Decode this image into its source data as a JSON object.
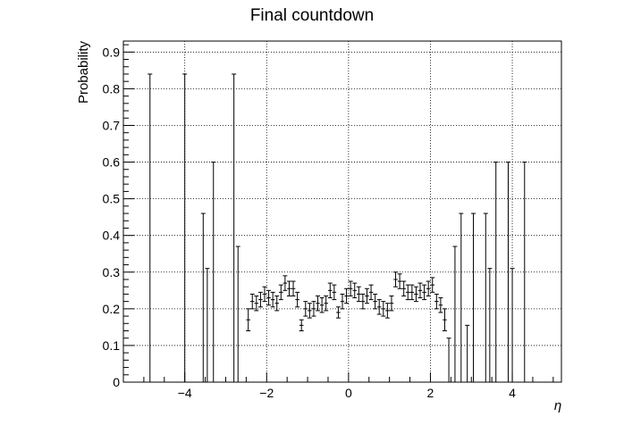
{
  "chart_data": {
    "type": "scatter",
    "title": "Final countdown",
    "xlabel": "η",
    "ylabel": "Probability",
    "xlim": [
      -5.5,
      5.2
    ],
    "ylim": [
      0,
      0.93
    ],
    "x_ticks": [
      -4,
      -2,
      0,
      2,
      4
    ],
    "x_tick_labels": [
      "−4",
      "−2",
      "0",
      "2",
      "4"
    ],
    "y_ticks": [
      0,
      0.1,
      0.2,
      0.3,
      0.4,
      0.5,
      0.6,
      0.7,
      0.8,
      0.9
    ],
    "y_tick_labels": [
      "0",
      "0.1",
      "0.2",
      "0.3",
      "0.4",
      "0.5",
      "0.6",
      "0.7",
      "0.8",
      "0.9"
    ],
    "grid": true,
    "bin_half_width": 0.05,
    "series": [
      {
        "points": [
          {
            "x": -4.85,
            "y": 0.0,
            "yerr": 0.84
          },
          {
            "x": -4.0,
            "y": 0.0,
            "yerr": 0.84
          },
          {
            "x": -3.55,
            "y": 0.0,
            "yerr": 0.46
          },
          {
            "x": -3.45,
            "y": 0.0,
            "yerr": 0.31
          },
          {
            "x": -3.3,
            "y": 0.0,
            "yerr": 0.6
          },
          {
            "x": -2.8,
            "y": 0.0,
            "yerr": 0.84
          },
          {
            "x": -2.7,
            "y": 0.0,
            "yerr": 0.37
          },
          {
            "x": -2.45,
            "y": 0.17,
            "yerr": 0.03
          },
          {
            "x": -2.35,
            "y": 0.22,
            "yerr": 0.02
          },
          {
            "x": -2.25,
            "y": 0.215,
            "yerr": 0.02
          },
          {
            "x": -2.15,
            "y": 0.225,
            "yerr": 0.02
          },
          {
            "x": -2.05,
            "y": 0.24,
            "yerr": 0.02
          },
          {
            "x": -1.95,
            "y": 0.23,
            "yerr": 0.02
          },
          {
            "x": -1.85,
            "y": 0.225,
            "yerr": 0.02
          },
          {
            "x": -1.75,
            "y": 0.215,
            "yerr": 0.02
          },
          {
            "x": -1.65,
            "y": 0.245,
            "yerr": 0.02
          },
          {
            "x": -1.55,
            "y": 0.27,
            "yerr": 0.02
          },
          {
            "x": -1.45,
            "y": 0.255,
            "yerr": 0.02
          },
          {
            "x": -1.35,
            "y": 0.255,
            "yerr": 0.02
          },
          {
            "x": -1.25,
            "y": 0.225,
            "yerr": 0.02
          },
          {
            "x": -1.15,
            "y": 0.155,
            "yerr": 0.015
          },
          {
            "x": -1.05,
            "y": 0.2,
            "yerr": 0.02
          },
          {
            "x": -0.95,
            "y": 0.195,
            "yerr": 0.02
          },
          {
            "x": -0.85,
            "y": 0.2,
            "yerr": 0.02
          },
          {
            "x": -0.75,
            "y": 0.215,
            "yerr": 0.02
          },
          {
            "x": -0.65,
            "y": 0.21,
            "yerr": 0.02
          },
          {
            "x": -0.55,
            "y": 0.215,
            "yerr": 0.02
          },
          {
            "x": -0.45,
            "y": 0.25,
            "yerr": 0.02
          },
          {
            "x": -0.35,
            "y": 0.245,
            "yerr": 0.02
          },
          {
            "x": -0.25,
            "y": 0.19,
            "yerr": 0.015
          },
          {
            "x": -0.15,
            "y": 0.22,
            "yerr": 0.02
          },
          {
            "x": -0.05,
            "y": 0.235,
            "yerr": 0.02
          },
          {
            "x": 0.05,
            "y": 0.255,
            "yerr": 0.02
          },
          {
            "x": 0.15,
            "y": 0.25,
            "yerr": 0.02
          },
          {
            "x": 0.25,
            "y": 0.24,
            "yerr": 0.02
          },
          {
            "x": 0.35,
            "y": 0.22,
            "yerr": 0.02
          },
          {
            "x": 0.45,
            "y": 0.235,
            "yerr": 0.02
          },
          {
            "x": 0.55,
            "y": 0.245,
            "yerr": 0.02
          },
          {
            "x": 0.65,
            "y": 0.22,
            "yerr": 0.02
          },
          {
            "x": 0.75,
            "y": 0.205,
            "yerr": 0.02
          },
          {
            "x": 0.85,
            "y": 0.2,
            "yerr": 0.02
          },
          {
            "x": 0.95,
            "y": 0.195,
            "yerr": 0.02
          },
          {
            "x": 1.05,
            "y": 0.215,
            "yerr": 0.02
          },
          {
            "x": 1.15,
            "y": 0.28,
            "yerr": 0.02
          },
          {
            "x": 1.25,
            "y": 0.275,
            "yerr": 0.02
          },
          {
            "x": 1.35,
            "y": 0.255,
            "yerr": 0.02
          },
          {
            "x": 1.45,
            "y": 0.245,
            "yerr": 0.02
          },
          {
            "x": 1.55,
            "y": 0.245,
            "yerr": 0.02
          },
          {
            "x": 1.65,
            "y": 0.24,
            "yerr": 0.02
          },
          {
            "x": 1.75,
            "y": 0.25,
            "yerr": 0.02
          },
          {
            "x": 1.85,
            "y": 0.245,
            "yerr": 0.02
          },
          {
            "x": 1.95,
            "y": 0.255,
            "yerr": 0.02
          },
          {
            "x": 2.05,
            "y": 0.265,
            "yerr": 0.02
          },
          {
            "x": 2.15,
            "y": 0.22,
            "yerr": 0.02
          },
          {
            "x": 2.25,
            "y": 0.21,
            "yerr": 0.02
          },
          {
            "x": 2.35,
            "y": 0.17,
            "yerr": 0.03
          },
          {
            "x": 2.45,
            "y": 0.0,
            "yerr": 0.12
          },
          {
            "x": 2.6,
            "y": 0.0,
            "yerr": 0.37
          },
          {
            "x": 2.75,
            "y": 0.0,
            "yerr": 0.46
          },
          {
            "x": 2.9,
            "y": 0.0,
            "yerr": 0.155
          },
          {
            "x": 3.05,
            "y": 0.0,
            "yerr": 0.46
          },
          {
            "x": 3.35,
            "y": 0.0,
            "yerr": 0.46
          },
          {
            "x": 3.45,
            "y": 0.0,
            "yerr": 0.31
          },
          {
            "x": 3.6,
            "y": 0.0,
            "yerr": 0.6
          },
          {
            "x": 3.9,
            "y": 0.0,
            "yerr": 0.6
          },
          {
            "x": 4.0,
            "y": 0.0,
            "yerr": 0.31
          },
          {
            "x": 4.3,
            "y": 0.0,
            "yerr": 0.6
          }
        ]
      }
    ]
  }
}
